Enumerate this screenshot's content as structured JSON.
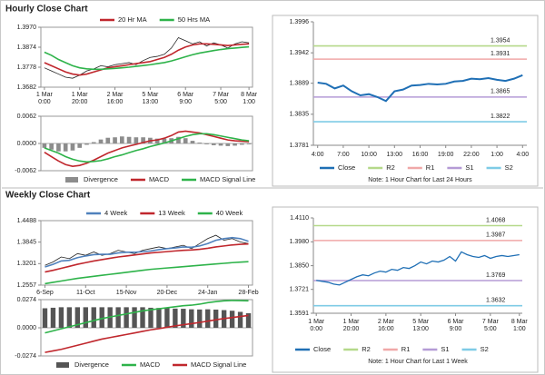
{
  "headings": [
    "Hourly Close Chart",
    "Weekly Close Chart"
  ],
  "chart_data": [
    {
      "type": "line",
      "categories": [
        [
          "1 Mar",
          "0:00"
        ],
        null,
        null,
        null,
        null,
        [
          "1 Mar",
          "20:00"
        ],
        null,
        null,
        null,
        null,
        [
          "2 Mar",
          "16:00"
        ],
        null,
        null,
        null,
        null,
        [
          "5 Mar",
          "13:00"
        ],
        null,
        null,
        null,
        null,
        [
          "6 Mar",
          "9:00"
        ],
        null,
        null,
        null,
        null,
        [
          "7 Mar",
          "5:00"
        ],
        null,
        null,
        null,
        [
          "8 Mar",
          "1:00"
        ]
      ],
      "series": [
        {
          "color": "#222222",
          "values": [
            1.3775,
            1.376,
            1.3745,
            1.373,
            1.3725,
            1.374,
            1.376,
            1.377,
            1.3785,
            1.378,
            1.379,
            1.3795,
            1.38,
            1.379,
            1.381,
            1.3825,
            1.383,
            1.384,
            1.387,
            1.392,
            1.3905,
            1.389,
            1.39,
            1.388,
            1.3895,
            1.3885,
            1.387,
            1.389,
            1.39,
            1.3895
          ]
        },
        {
          "name": "20 Hr MA",
          "color": "#c0272d",
          "values": [
            1.38,
            1.3785,
            1.377,
            1.3755,
            1.3745,
            1.374,
            1.3745,
            1.3755,
            1.3765,
            1.3775,
            1.378,
            1.3785,
            1.379,
            1.3795,
            1.38,
            1.3805,
            1.3815,
            1.3825,
            1.384,
            1.386,
            1.3875,
            1.3885,
            1.389,
            1.389,
            1.3888,
            1.3885,
            1.3882,
            1.3885,
            1.3888,
            1.389
          ]
        },
        {
          "name": "50 Hrs MA",
          "color": "#2eb34a",
          "values": [
            1.385,
            1.3835,
            1.3815,
            1.38,
            1.3785,
            1.3775,
            1.377,
            1.3768,
            1.3768,
            1.377,
            1.3772,
            1.3775,
            1.3778,
            1.3782,
            1.3786,
            1.379,
            1.3795,
            1.38,
            1.3808,
            1.3818,
            1.3828,
            1.3838,
            1.3846,
            1.3852,
            1.3858,
            1.3863,
            1.3867,
            1.387,
            1.3873,
            1.3876
          ]
        }
      ],
      "ylim": [
        1.3682,
        1.397
      ],
      "yticks": [
        1.3682,
        1.3778,
        1.3874,
        {
          "value": 1.397,
          "label": "1.3970"
        }
      ],
      "legend": "top"
    },
    {
      "type": "combo",
      "series": [
        {
          "name": "Divergence",
          "kind": "bar",
          "color": "#8c8c8c",
          "values": [
            -0.001,
            -0.0014,
            -0.0018,
            -0.0018,
            -0.0016,
            -0.001,
            -0.0003,
            0.0003,
            0.0009,
            0.0013,
            0.0014,
            0.0016,
            0.0015,
            0.0014,
            0.0014,
            0.0013,
            0.0011,
            0.0011,
            0.0012,
            0.0015,
            0.0012,
            0.0006,
            0.0002,
            -0.0002,
            -0.0004,
            -0.0005,
            -0.0006,
            -0.0005,
            -0.0003,
            -0.0002
          ]
        },
        {
          "name": "MACD",
          "color": "#c0272d",
          "values": [
            -0.002,
            -0.003,
            -0.004,
            -0.0048,
            -0.0052,
            -0.005,
            -0.0045,
            -0.0038,
            -0.003,
            -0.0022,
            -0.0016,
            -0.001,
            -0.0006,
            -0.0002,
            0.0002,
            0.0006,
            0.0008,
            0.0012,
            0.0018,
            0.0026,
            0.0028,
            0.0026,
            0.0024,
            0.002,
            0.0016,
            0.0012,
            0.0008,
            0.0006,
            0.0005,
            0.0004
          ]
        },
        {
          "name": "MACD Signal Line",
          "color": "#2eb34a",
          "values": [
            -0.001,
            -0.0016,
            -0.0022,
            -0.003,
            -0.0036,
            -0.004,
            -0.0042,
            -0.0041,
            -0.0039,
            -0.0035,
            -0.003,
            -0.0026,
            -0.0021,
            -0.0016,
            -0.0012,
            -0.0007,
            -0.0003,
            0.0001,
            0.0006,
            0.0011,
            0.0016,
            0.002,
            0.0022,
            0.0022,
            0.002,
            0.0017,
            0.0014,
            0.0011,
            0.0008,
            0.0006
          ]
        }
      ],
      "ylim": [
        -0.0062,
        0.0062
      ],
      "yticks": [
        -0.0062,
        {
          "value": 0,
          "label": "0.0000"
        },
        0.0062
      ],
      "legend": "bottom"
    },
    {
      "type": "line",
      "categories": [
        "4:00",
        null,
        null,
        "7:00",
        null,
        null,
        "10:00",
        null,
        null,
        "13:00",
        null,
        null,
        "16:00",
        null,
        null,
        "19:00",
        null,
        null,
        "22:00",
        null,
        null,
        "1:00",
        null,
        null,
        "4:00"
      ],
      "series": [
        {
          "name": "Close",
          "color": "#1f6fb5",
          "values": [
            1.389,
            1.3888,
            1.388,
            1.3885,
            1.3875,
            1.3868,
            1.387,
            1.3865,
            1.3858,
            1.3875,
            1.3878,
            1.3885,
            1.3886,
            1.3888,
            1.3887,
            1.3888,
            1.3892,
            1.3893,
            1.3897,
            1.3896,
            1.3898,
            1.3895,
            1.3893,
            1.3897,
            1.3903
          ]
        }
      ],
      "levels": [
        {
          "name": "R2",
          "value": 1.3954,
          "color": "#b5d98a"
        },
        {
          "name": "R1",
          "value": 1.3931,
          "color": "#f0a8a8"
        },
        {
          "name": "S1",
          "value": 1.3865,
          "color": "#b59bd6"
        },
        {
          "name": "S2",
          "value": 1.3822,
          "color": "#7fcbe6"
        }
      ],
      "ylim": [
        1.3781,
        1.3996
      ],
      "yticks": [
        1.3781,
        1.3835,
        1.3889,
        1.3942,
        1.3996
      ],
      "legend": "bottom",
      "note": "Note: 1 Hour Chart for Last 24 Hours"
    },
    {
      "type": "line",
      "categories": [
        "6-Sep",
        null,
        null,
        null,
        null,
        "11-Oct",
        null,
        null,
        null,
        null,
        "15-Nov",
        null,
        null,
        null,
        null,
        "20-Dec",
        null,
        null,
        null,
        null,
        "24-Jan",
        null,
        null,
        null,
        null,
        "28-Feb"
      ],
      "series": [
        {
          "color": "#222222",
          "values": [
            1.315,
            1.325,
            1.34,
            1.335,
            1.35,
            1.345,
            1.355,
            1.345,
            1.35,
            1.36,
            1.355,
            1.35,
            1.36,
            1.365,
            1.37,
            1.365,
            1.37,
            1.375,
            1.365,
            1.38,
            1.395,
            1.405,
            1.39,
            1.395,
            1.385,
            1.38
          ]
        },
        {
          "name": "4 Week",
          "color": "#4f81bd",
          "values": [
            1.31,
            1.318,
            1.328,
            1.33,
            1.338,
            1.343,
            1.347,
            1.348,
            1.348,
            1.352,
            1.354,
            1.354,
            1.356,
            1.358,
            1.362,
            1.365,
            1.367,
            1.37,
            1.369,
            1.373,
            1.38,
            1.39,
            1.395,
            1.398,
            1.395,
            1.387
          ]
        },
        {
          "name": "13 Week",
          "color": "#c0272d",
          "values": [
            1.295,
            1.3,
            1.306,
            1.312,
            1.318,
            1.323,
            1.328,
            1.332,
            1.336,
            1.34,
            1.343,
            1.346,
            1.349,
            1.352,
            1.354,
            1.356,
            1.358,
            1.36,
            1.361,
            1.363,
            1.366,
            1.37,
            1.373,
            1.376,
            1.378,
            1.379
          ]
        },
        {
          "name": "40 Week",
          "color": "#2eb34a",
          "values": [
            1.26,
            1.264,
            1.268,
            1.272,
            1.276,
            1.279,
            1.282,
            1.285,
            1.288,
            1.291,
            1.294,
            1.297,
            1.3,
            1.303,
            1.305,
            1.307,
            1.309,
            1.311,
            1.313,
            1.315,
            1.317,
            1.319,
            1.321,
            1.323,
            1.3245,
            1.326
          ]
        }
      ],
      "ylim": [
        1.2557,
        1.4488
      ],
      "yticks": [
        1.2557,
        1.3201,
        1.3845,
        1.4488
      ],
      "legend": "top"
    },
    {
      "type": "combo",
      "series": [
        {
          "name": "Divergence",
          "kind": "bar",
          "color": "#555555",
          "values": [
            0.019,
            0.0195,
            0.02,
            0.02,
            0.02,
            0.02,
            0.02,
            0.02,
            0.02,
            0.02,
            0.02,
            0.02,
            0.02,
            0.0195,
            0.0193,
            0.019,
            0.0187,
            0.0185,
            0.018,
            0.0178,
            0.018,
            0.0177,
            0.0172,
            0.0166,
            0.0155,
            0.0142
          ]
        },
        {
          "name": "MACD",
          "color": "#2eb34a",
          "values": [
            -0.005,
            -0.003,
            -0.001,
            0.001,
            0.003,
            0.005,
            0.007,
            0.009,
            0.0105,
            0.012,
            0.0135,
            0.015,
            0.0165,
            0.0175,
            0.0185,
            0.0195,
            0.0205,
            0.0215,
            0.022,
            0.023,
            0.0245,
            0.0255,
            0.0262,
            0.0266,
            0.0265,
            0.0262
          ]
        },
        {
          "name": "MACD Signal Line",
          "color": "#c0272d",
          "values": [
            -0.024,
            -0.0225,
            -0.021,
            -0.019,
            -0.017,
            -0.015,
            -0.013,
            -0.011,
            -0.0095,
            -0.008,
            -0.0065,
            -0.005,
            -0.0035,
            -0.002,
            -0.0008,
            0.0005,
            0.0018,
            0.003,
            0.004,
            0.0052,
            0.0065,
            0.0078,
            0.009,
            0.01,
            0.011,
            0.012
          ]
        }
      ],
      "ylim": [
        -0.0274,
        0.0274
      ],
      "yticks": [
        -0.0274,
        {
          "value": 0,
          "label": "0.0000"
        },
        0.0274
      ],
      "legend": "bottom"
    },
    {
      "type": "line",
      "categories": [
        [
          "1 Mar",
          "0:00"
        ],
        null,
        null,
        null,
        null,
        null,
        [
          "1 Mar",
          "20:00"
        ],
        null,
        null,
        null,
        null,
        null,
        [
          "2 Mar",
          "16:00"
        ],
        null,
        null,
        null,
        null,
        null,
        [
          "5 Mar",
          "13:00"
        ],
        null,
        null,
        null,
        null,
        null,
        [
          "6 Mar",
          "9:00"
        ],
        null,
        null,
        null,
        null,
        null,
        [
          "7 Mar",
          "5:00"
        ],
        null,
        null,
        null,
        null,
        [
          "8 Mar",
          "1:00"
        ]
      ],
      "series": [
        {
          "name": "Close",
          "color": "#1f6fb5",
          "values": [
            1.377,
            1.3765,
            1.376,
            1.375,
            1.3745,
            1.376,
            1.3775,
            1.379,
            1.38,
            1.3795,
            1.381,
            1.382,
            1.3815,
            1.383,
            1.3825,
            1.384,
            1.3835,
            1.385,
            1.387,
            1.386,
            1.3875,
            1.387,
            1.388,
            1.39,
            1.3875,
            1.3925,
            1.391,
            1.39,
            1.3895,
            1.3905,
            1.389,
            1.39,
            1.3905,
            1.39,
            1.3905,
            1.391
          ]
        }
      ],
      "levels": [
        {
          "name": "R2",
          "value": 1.4068,
          "color": "#b5d98a"
        },
        {
          "name": "R1",
          "value": 1.3987,
          "color": "#f0a8a8"
        },
        {
          "name": "S1",
          "value": 1.3769,
          "color": "#b59bd6"
        },
        {
          "name": "S2",
          "value": 1.3632,
          "color": "#7fcbe6"
        }
      ],
      "ylim": [
        1.3591,
        1.411
      ],
      "yticks": [
        1.3591,
        1.3721,
        {
          "value": 1.385,
          "label": "1.3850"
        },
        {
          "value": 1.398,
          "label": "1.3980"
        },
        {
          "value": 1.411,
          "label": "1.4110"
        }
      ],
      "legend": "bottom",
      "note": "Note: 1 Hour Chart for Last 1 Week"
    }
  ]
}
